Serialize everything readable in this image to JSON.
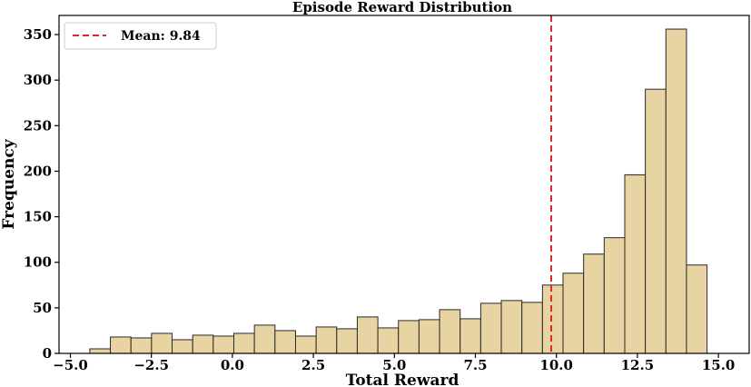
{
  "chart_data": {
    "type": "bar",
    "title": "Episode Reward Distribution",
    "xlabel": "Total Reward",
    "ylabel": "Frequency",
    "xlim": [
      -5.35,
      15.95
    ],
    "ylim": [
      0,
      371
    ],
    "xticks": [
      {
        "value": -5.0,
        "label": "−5.0"
      },
      {
        "value": -2.5,
        "label": "−2.5"
      },
      {
        "value": 0.0,
        "label": "0.0"
      },
      {
        "value": 2.5,
        "label": "2.5"
      },
      {
        "value": 5.0,
        "label": "5.0"
      },
      {
        "value": 7.5,
        "label": "7.5"
      },
      {
        "value": 10.0,
        "label": "10.0"
      },
      {
        "value": 12.5,
        "label": "12.5"
      },
      {
        "value": 15.0,
        "label": "15.0"
      }
    ],
    "yticks": [
      {
        "value": 0,
        "label": "0"
      },
      {
        "value": 50,
        "label": "50"
      },
      {
        "value": 100,
        "label": "100"
      },
      {
        "value": 150,
        "label": "150"
      },
      {
        "value": 200,
        "label": "200"
      },
      {
        "value": 250,
        "label": "250"
      },
      {
        "value": 300,
        "label": "300"
      },
      {
        "value": 350,
        "label": "350"
      }
    ],
    "bins": {
      "start": -4.4,
      "width": 0.635,
      "counts": [
        5,
        18,
        17,
        22,
        15,
        20,
        19,
        22,
        31,
        25,
        19,
        29,
        27,
        40,
        28,
        36,
        37,
        48,
        38,
        55,
        58,
        56,
        75,
        88,
        109,
        127,
        196,
        290,
        356,
        97
      ]
    },
    "mean": {
      "value": 9.84,
      "label": "Mean: 9.84",
      "color": "#e0282a"
    },
    "bar_color": "#e8d4a2",
    "legend_position": "top-left",
    "grid": false
  }
}
